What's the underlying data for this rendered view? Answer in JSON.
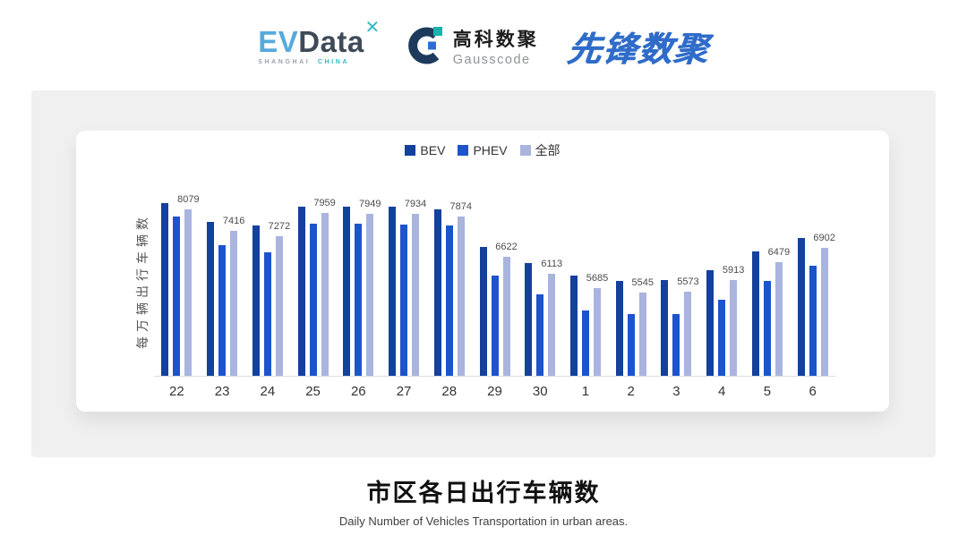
{
  "header": {
    "evdata": {
      "ev": "EV",
      "data": "Data",
      "mark": "✕",
      "sub_left": "SHANGHAI",
      "sub_right": "CHINA"
    },
    "gausscode": {
      "cn": "高科数聚",
      "en": "Gausscode"
    },
    "pioneer": "先锋数聚"
  },
  "chart_data": {
    "type": "bar",
    "title": "市区各日出行车辆数",
    "subtitle": "Daily Number of Vehicles Transportation in urban areas.",
    "ylabel": "每万辆出行车辆数",
    "categories": [
      "22",
      "23",
      "24",
      "25",
      "26",
      "27",
      "28",
      "29",
      "30",
      "1",
      "2",
      "3",
      "4",
      "5",
      "6"
    ],
    "series": [
      {
        "name": "BEV",
        "color": "#14409E",
        "labeled": false,
        "values": [
          8280,
          7690,
          7580,
          8170,
          8170,
          8160,
          8080,
          6920,
          6450,
          6060,
          5900,
          5930,
          6230,
          6800,
          7210
        ]
      },
      {
        "name": "PHEV",
        "color": "#1C54CE",
        "labeled": false,
        "values": [
          7850,
          6980,
          6780,
          7650,
          7640,
          7620,
          7580,
          6070,
          5490,
          5000,
          4890,
          4880,
          5320,
          5900,
          6370
        ]
      },
      {
        "name": "全部",
        "color": "#A9B4DF",
        "labeled": true,
        "values": [
          8079,
          7416,
          7272,
          7959,
          7949,
          7934,
          7874,
          6622,
          6113,
          5685,
          5545,
          5573,
          5913,
          6479,
          6902
        ]
      }
    ],
    "ylim": [
      3000,
      8600
    ],
    "grid": false,
    "legend_position": "top"
  }
}
